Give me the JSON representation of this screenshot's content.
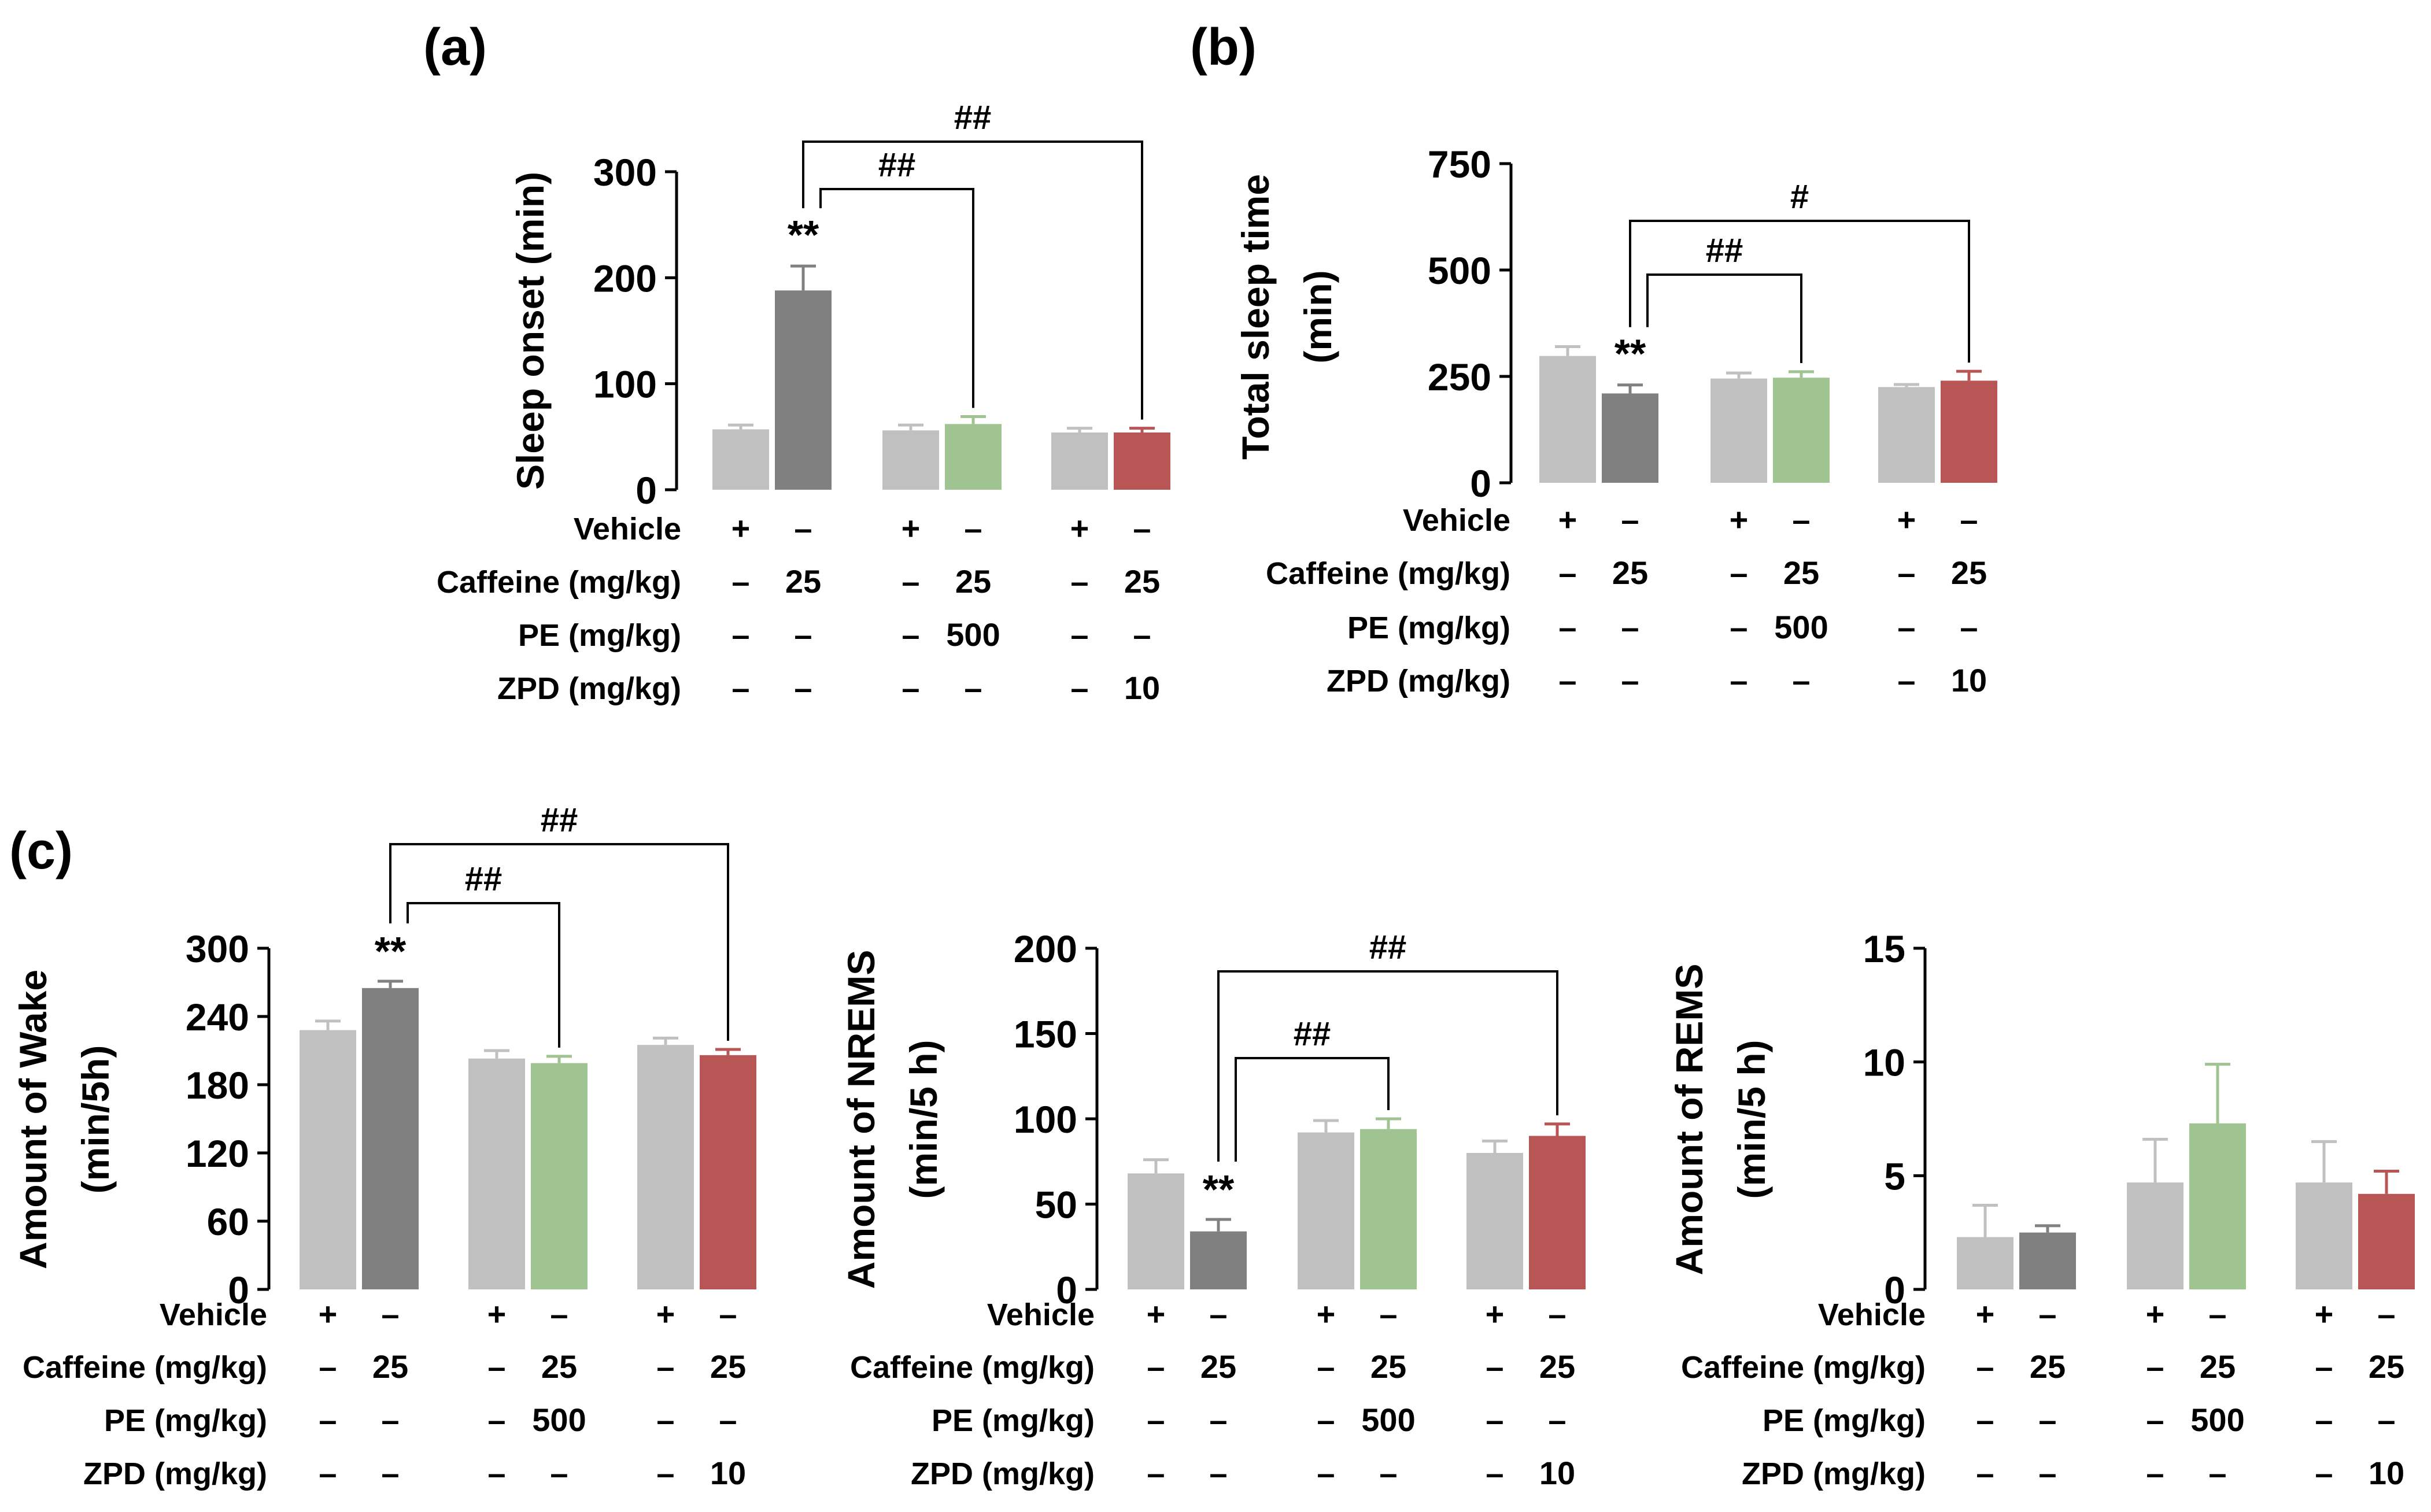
{
  "colors": {
    "vehicle": "#c0c0c0",
    "caffeine": "#808080",
    "pe": "#a0c392",
    "zpd": "#b85555",
    "ink": "#000000"
  },
  "chart_data": [
    {
      "id": "a",
      "panel_label": "(a)",
      "type": "bar",
      "ylabel": "Sleep onset (min)",
      "ylabel_lines": [
        "Sleep onset (min)"
      ],
      "ylim": [
        0,
        300
      ],
      "yticks": [
        0,
        100,
        200,
        300
      ],
      "series_colors": [
        "vehicle",
        "caffeine",
        "vehicle",
        "pe",
        "vehicle",
        "zpd"
      ],
      "values": [
        57,
        188,
        56,
        62,
        54,
        54
      ],
      "errors": [
        4,
        23,
        5,
        7,
        4,
        4
      ],
      "stars": [
        {
          "bar": 1,
          "text": "**"
        }
      ],
      "brackets": [
        {
          "from": 1,
          "to": 3,
          "level": 1,
          "text": "##"
        },
        {
          "from": 1,
          "to": 5,
          "level": 2,
          "text": "##"
        }
      ],
      "table_rows": [
        {
          "label": "Vehicle",
          "cells": [
            "+",
            "–",
            "+",
            "–",
            "+",
            "–"
          ]
        },
        {
          "label": "Caffeine (mg/kg)",
          "cells": [
            "–",
            "25",
            "–",
            "25",
            "–",
            "25"
          ]
        },
        {
          "label": "PE (mg/kg)",
          "cells": [
            "–",
            "–",
            "–",
            "500",
            "–",
            "–"
          ]
        },
        {
          "label": "ZPD (mg/kg)",
          "cells": [
            "–",
            "–",
            "–",
            "–",
            "–",
            "10"
          ]
        }
      ]
    },
    {
      "id": "b",
      "panel_label": "(b)",
      "type": "bar",
      "ylabel": "Total sleep time (min)",
      "ylabel_lines": [
        "Total sleep time",
        "(min)"
      ],
      "ylim": [
        0,
        750
      ],
      "yticks": [
        0,
        250,
        500,
        750
      ],
      "series_colors": [
        "vehicle",
        "caffeine",
        "vehicle",
        "pe",
        "vehicle",
        "zpd"
      ],
      "values": [
        298,
        210,
        245,
        247,
        225,
        240
      ],
      "errors": [
        22,
        20,
        13,
        14,
        6,
        22
      ],
      "stars": [
        {
          "bar": 1,
          "text": "**"
        }
      ],
      "brackets": [
        {
          "from": 1,
          "to": 3,
          "level": 1,
          "text": "##"
        },
        {
          "from": 1,
          "to": 5,
          "level": 2,
          "text": "#"
        }
      ],
      "table_rows": [
        {
          "label": "Vehicle",
          "cells": [
            "+",
            "–",
            "+",
            "–",
            "+",
            "–"
          ]
        },
        {
          "label": "Caffeine (mg/kg)",
          "cells": [
            "–",
            "25",
            "–",
            "25",
            "–",
            "25"
          ]
        },
        {
          "label": "PE (mg/kg)",
          "cells": [
            "–",
            "–",
            "–",
            "500",
            "–",
            "–"
          ]
        },
        {
          "label": "ZPD (mg/kg)",
          "cells": [
            "–",
            "–",
            "–",
            "–",
            "–",
            "10"
          ]
        }
      ]
    },
    {
      "id": "c1",
      "panel_label": "(c)",
      "type": "bar",
      "ylabel": "Amount of Wake (min/5h)",
      "ylabel_lines": [
        "Amount of Wake",
        "(min/5h)"
      ],
      "ylim": [
        0,
        300
      ],
      "yticks": [
        0,
        60,
        120,
        180,
        240,
        300
      ],
      "series_colors": [
        "vehicle",
        "caffeine",
        "vehicle",
        "pe",
        "vehicle",
        "zpd"
      ],
      "values": [
        228,
        265,
        203,
        199,
        215,
        206
      ],
      "errors": [
        8,
        6,
        7,
        6,
        6,
        5
      ],
      "stars": [
        {
          "bar": 1,
          "text": "**"
        }
      ],
      "brackets": [
        {
          "from": 1,
          "to": 3,
          "level": 1,
          "text": "##"
        },
        {
          "from": 1,
          "to": 5,
          "level": 2,
          "text": "##"
        }
      ],
      "table_rows": [
        {
          "label": "Vehicle",
          "cells": [
            "+",
            "–",
            "+",
            "–",
            "+",
            "–"
          ]
        },
        {
          "label": "Caffeine (mg/kg)",
          "cells": [
            "–",
            "25",
            "–",
            "25",
            "–",
            "25"
          ]
        },
        {
          "label": "PE (mg/kg)",
          "cells": [
            "–",
            "–",
            "–",
            "500",
            "–",
            "–"
          ]
        },
        {
          "label": "ZPD (mg/kg)",
          "cells": [
            "–",
            "–",
            "–",
            "–",
            "–",
            "10"
          ]
        }
      ]
    },
    {
      "id": "c2",
      "panel_label": "",
      "type": "bar",
      "ylabel": "Amount of NREMS (min/5 h)",
      "ylabel_lines": [
        "Amount of NREMS",
        "(min/5 h)"
      ],
      "ylim": [
        0,
        200
      ],
      "yticks": [
        0,
        50,
        100,
        150,
        200
      ],
      "series_colors": [
        "vehicle",
        "caffeine",
        "vehicle",
        "pe",
        "vehicle",
        "zpd"
      ],
      "values": [
        68,
        34,
        92,
        94,
        80,
        90
      ],
      "errors": [
        8,
        7,
        7,
        6,
        7,
        7
      ],
      "stars": [
        {
          "bar": 1,
          "text": "**"
        }
      ],
      "brackets": [
        {
          "from": 1,
          "to": 3,
          "level": 1,
          "text": "##"
        },
        {
          "from": 1,
          "to": 5,
          "level": 2,
          "text": "##"
        }
      ],
      "table_rows": [
        {
          "label": "Vehicle",
          "cells": [
            "+",
            "–",
            "+",
            "–",
            "+",
            "–"
          ]
        },
        {
          "label": "Caffeine (mg/kg)",
          "cells": [
            "–",
            "25",
            "–",
            "25",
            "–",
            "25"
          ]
        },
        {
          "label": "PE (mg/kg)",
          "cells": [
            "–",
            "–",
            "–",
            "500",
            "–",
            "–"
          ]
        },
        {
          "label": "ZPD (mg/kg)",
          "cells": [
            "–",
            "–",
            "–",
            "–",
            "–",
            "10"
          ]
        }
      ]
    },
    {
      "id": "c3",
      "panel_label": "",
      "type": "bar",
      "ylabel": "Amount of REMS (min/5 h)",
      "ylabel_lines": [
        "Amount of REMS",
        "(min/5 h)"
      ],
      "ylim": [
        0,
        15
      ],
      "yticks": [
        0,
        5,
        10,
        15
      ],
      "series_colors": [
        "vehicle",
        "caffeine",
        "vehicle",
        "pe",
        "vehicle",
        "zpd"
      ],
      "values": [
        2.3,
        2.5,
        4.7,
        7.3,
        4.7,
        4.2
      ],
      "errors": [
        1.4,
        0.3,
        1.9,
        2.6,
        1.8,
        1.0
      ],
      "stars": [],
      "brackets": [],
      "table_rows": [
        {
          "label": "Vehicle",
          "cells": [
            "+",
            "–",
            "+",
            "–",
            "+",
            "–"
          ]
        },
        {
          "label": "Caffeine (mg/kg)",
          "cells": [
            "–",
            "25",
            "–",
            "25",
            "–",
            "25"
          ]
        },
        {
          "label": "PE (mg/kg)",
          "cells": [
            "–",
            "–",
            "–",
            "500",
            "–",
            "–"
          ]
        },
        {
          "label": "ZPD (mg/kg)",
          "cells": [
            "–",
            "–",
            "–",
            "–",
            "–",
            "10"
          ]
        }
      ]
    }
  ]
}
